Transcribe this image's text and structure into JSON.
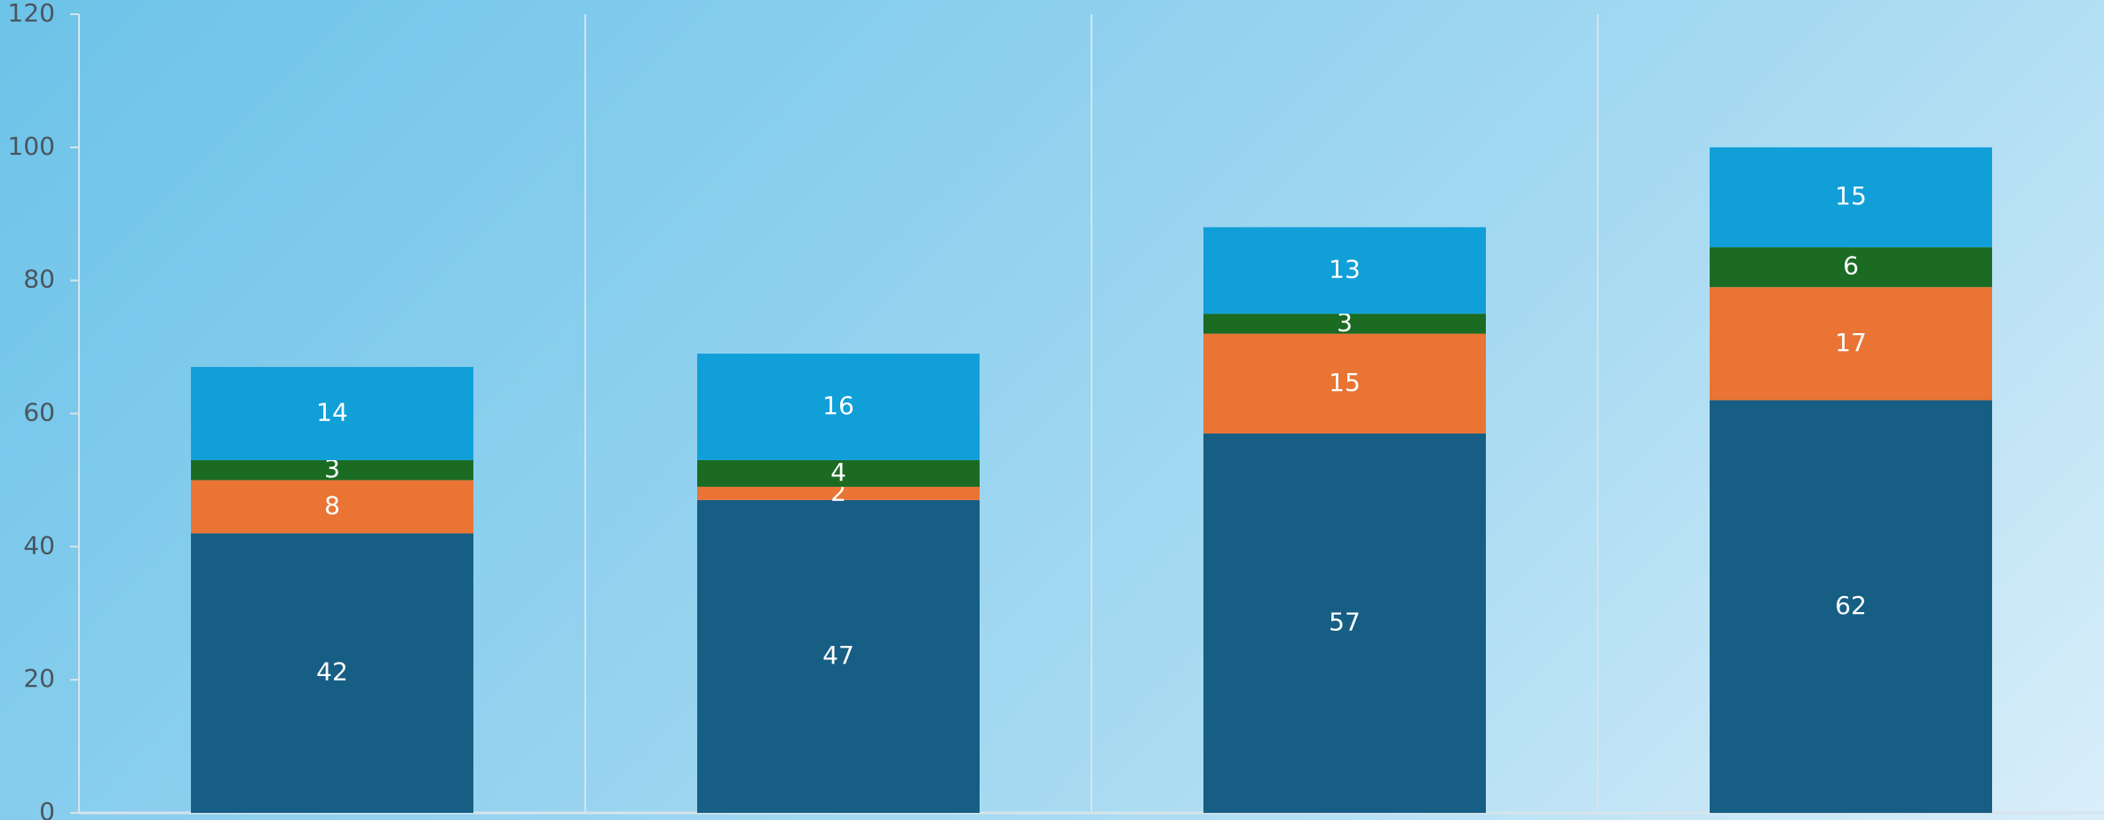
{
  "chart_data": {
    "type": "bar",
    "stacked": true,
    "categories": [
      "",
      "",
      "",
      ""
    ],
    "ylim": [
      0,
      120
    ],
    "yticks": [
      0,
      20,
      40,
      60,
      80,
      100,
      120
    ],
    "grid": {
      "vertical": true,
      "horizontal": false
    },
    "series": [
      {
        "values": [
          42,
          47,
          57,
          62
        ],
        "color": "#175e84"
      },
      {
        "values": [
          8,
          2,
          15,
          17
        ],
        "color": "#e97434"
      },
      {
        "values": [
          3,
          4,
          3,
          6
        ],
        "color": "#1c6b23"
      },
      {
        "values": [
          14,
          16,
          13,
          15
        ],
        "color": "#119fd8"
      }
    ]
  }
}
